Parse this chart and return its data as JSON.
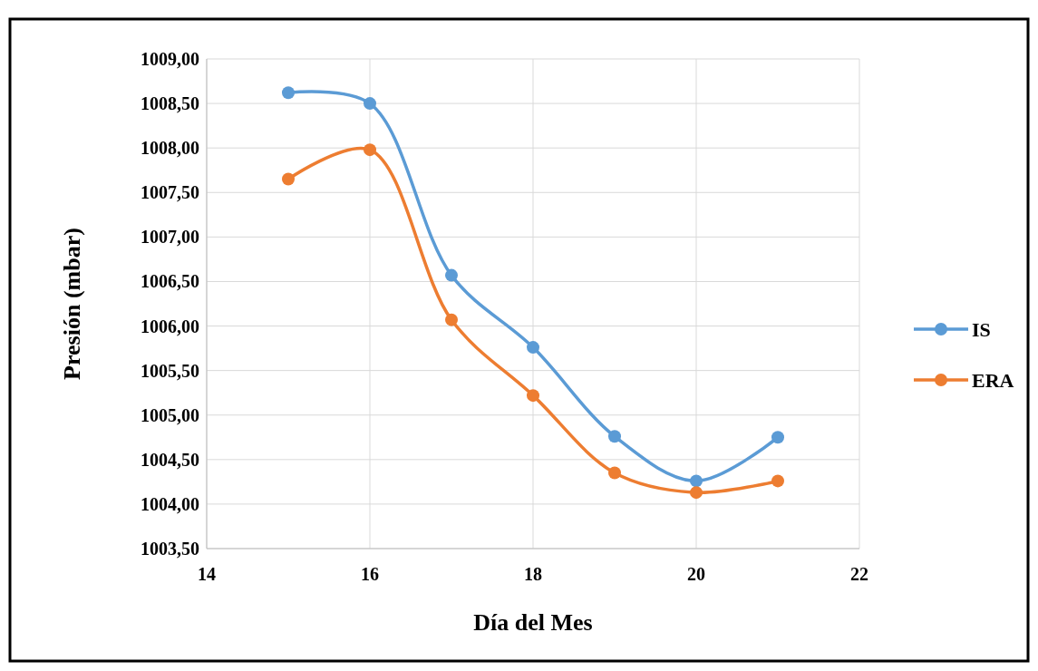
{
  "chart_data": {
    "type": "line",
    "xlabel": "Día del Mes",
    "ylabel": "Presión (mbar)",
    "x": [
      15,
      16,
      17,
      18,
      19,
      20,
      21
    ],
    "series": [
      {
        "name": "IS",
        "color": "#5b9bd5",
        "values": [
          1008.62,
          1008.5,
          1006.57,
          1005.76,
          1004.76,
          1004.26,
          1004.75
        ]
      },
      {
        "name": "ERA",
        "color": "#ed7d31",
        "values": [
          1007.65,
          1007.98,
          1006.07,
          1005.22,
          1004.35,
          1004.13,
          1004.26
        ]
      }
    ],
    "xlim": [
      14,
      22
    ],
    "xticks": [
      14,
      16,
      18,
      20,
      22
    ],
    "ylim": [
      1003.5,
      1009
    ],
    "yticks": [
      {
        "value": 1003.5,
        "label": "1003,50"
      },
      {
        "value": 1004,
        "label": "1004,00"
      },
      {
        "value": 1004.5,
        "label": "1004,50"
      },
      {
        "value": 1005,
        "label": "1005,00"
      },
      {
        "value": 1005.5,
        "label": "1005,50"
      },
      {
        "value": 1006,
        "label": "1006,00"
      },
      {
        "value": 1006.5,
        "label": "1006,50"
      },
      {
        "value": 1007,
        "label": "1007,00"
      },
      {
        "value": 1007.5,
        "label": "1007,50"
      },
      {
        "value": 1008,
        "label": "1008,00"
      },
      {
        "value": 1008.5,
        "label": "1008,50"
      },
      {
        "value": 1009,
        "label": "1009,00"
      }
    ],
    "grid": true,
    "legend": "right",
    "marker": "circle",
    "line_style": "solid"
  }
}
